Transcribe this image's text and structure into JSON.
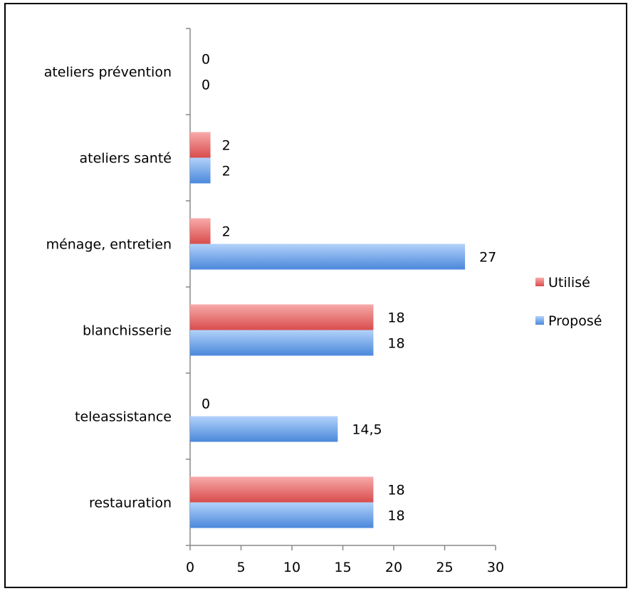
{
  "chart_data": {
    "type": "bar",
    "orientation": "horizontal",
    "categories": [
      "restauration",
      "teleassistance",
      "blanchisserie",
      "ménage, entretien",
      "ateliers santé",
      "ateliers prévention"
    ],
    "series": [
      {
        "name": "Utilisé",
        "values": [
          18,
          0,
          18,
          2,
          2,
          0
        ],
        "labels": [
          "18",
          "0",
          "18",
          "2",
          "2",
          "0"
        ],
        "color": "#e86b6b"
      },
      {
        "name": "Proposé",
        "values": [
          18,
          14.5,
          18,
          27,
          2,
          0
        ],
        "labels": [
          "18",
          "14,5",
          "18",
          "27",
          "2",
          "0"
        ],
        "color": "#5b9be8"
      }
    ],
    "x_ticks": [
      "0",
      "5",
      "10",
      "15",
      "20",
      "25",
      "30"
    ],
    "xlim": [
      0,
      30
    ],
    "legend_position": "right",
    "grid": false
  }
}
